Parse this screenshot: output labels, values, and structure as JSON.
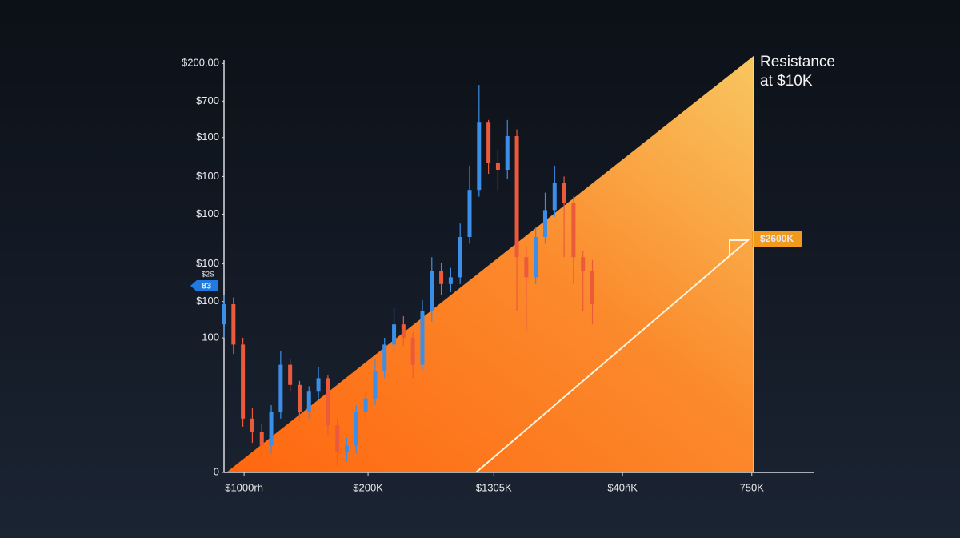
{
  "chart_data": {
    "type": "candlestick",
    "annotations": [
      {
        "text": "Resistance at $10K"
      },
      {
        "text": "$2600K"
      },
      {
        "text": "$2S"
      },
      {
        "text": "83"
      }
    ],
    "xlim": [
      0,
      100
    ],
    "xticks": [
      {
        "value": 3.4,
        "label": "$1000rh"
      },
      {
        "value": 24.4,
        "label": "$200K"
      },
      {
        "value": 45.7,
        "label": "$1305K"
      },
      {
        "value": 67.5,
        "label": "$40ñK"
      },
      {
        "value": 89.4,
        "label": "750K"
      }
    ],
    "ylim": [
      0,
      310
    ],
    "yticks": [
      0,
      100,
      {
        "value": 127,
        "label": "$100"
      },
      {
        "value": 155,
        "label": "$100"
      },
      {
        "value": 192,
        "label": "$100"
      },
      {
        "value": 220,
        "label": "$100"
      },
      {
        "value": 249,
        "label": "$100"
      },
      {
        "value": 276,
        "label": "$700"
      },
      {
        "value": 304,
        "label": "$200,00"
      }
    ],
    "grid": false,
    "up_color": "#3b8fe8",
    "down_color": "#ec5a3c",
    "x": [
      0,
      1.6,
      3.2,
      4.8,
      6.4,
      8,
      9.6,
      11.2,
      12.8,
      14.4,
      16,
      17.6,
      19.2,
      20.8,
      22.4,
      24,
      25.6,
      27.2,
      28.8,
      30.4,
      32,
      33.6,
      35.2,
      36.8,
      38.4,
      40,
      41.6,
      43.2,
      44.8,
      46.4,
      48,
      49.6,
      51.2,
      52.8,
      54.4,
      56,
      57.6,
      59.2,
      60.8,
      62.4
    ],
    "open": [
      110,
      125,
      95,
      40,
      30,
      20,
      45,
      80,
      65,
      45,
      60,
      70,
      35,
      15,
      20,
      45,
      55,
      75,
      95,
      110,
      100,
      80,
      120,
      150,
      140,
      145,
      175,
      210,
      260,
      230,
      225,
      250,
      160,
      145,
      175,
      195,
      215,
      200,
      160,
      150
    ],
    "close": [
      125,
      95,
      40,
      30,
      20,
      45,
      80,
      65,
      45,
      60,
      70,
      35,
      15,
      20,
      45,
      55,
      75,
      95,
      110,
      100,
      80,
      120,
      150,
      140,
      145,
      175,
      210,
      260,
      230,
      225,
      250,
      160,
      145,
      175,
      195,
      215,
      200,
      160,
      150,
      125
    ],
    "high": [
      132,
      130,
      100,
      48,
      36,
      50,
      90,
      84,
      68,
      64,
      78,
      72,
      40,
      26,
      50,
      60,
      84,
      100,
      122,
      116,
      104,
      128,
      160,
      156,
      152,
      185,
      228,
      288,
      262,
      240,
      262,
      255,
      168,
      182,
      208,
      228,
      220,
      205,
      165,
      158
    ],
    "low": [
      100,
      88,
      34,
      22,
      12,
      14,
      40,
      60,
      38,
      40,
      55,
      28,
      5,
      8,
      14,
      40,
      50,
      70,
      90,
      94,
      70,
      76,
      112,
      132,
      134,
      140,
      170,
      205,
      222,
      210,
      218,
      120,
      105,
      140,
      170,
      190,
      160,
      140,
      120,
      110
    ]
  }
}
